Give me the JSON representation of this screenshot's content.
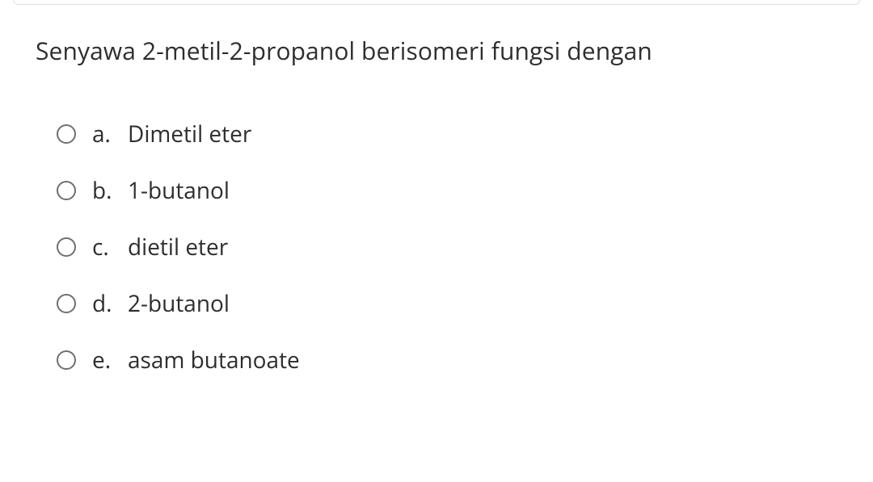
{
  "question": {
    "text": "Senyawa 2-metil-2-propanol berisomeri  fungsi dengan"
  },
  "options": [
    {
      "letter": "a.",
      "text": "Dimetil eter"
    },
    {
      "letter": "b.",
      "text": "1-butanol"
    },
    {
      "letter": "c.",
      "text": "dietil eter"
    },
    {
      "letter": "d.",
      "text": "2-butanol"
    },
    {
      "letter": "e.",
      "text": "asam butanoate"
    }
  ],
  "colors": {
    "text": "#2e2e2e",
    "radio_border": "#6f6f6f",
    "divider_border": "#e0e0e0",
    "background": "#ffffff"
  },
  "typography": {
    "question_fontsize": 30,
    "option_fontsize": 28,
    "font_family": "Open Sans"
  }
}
